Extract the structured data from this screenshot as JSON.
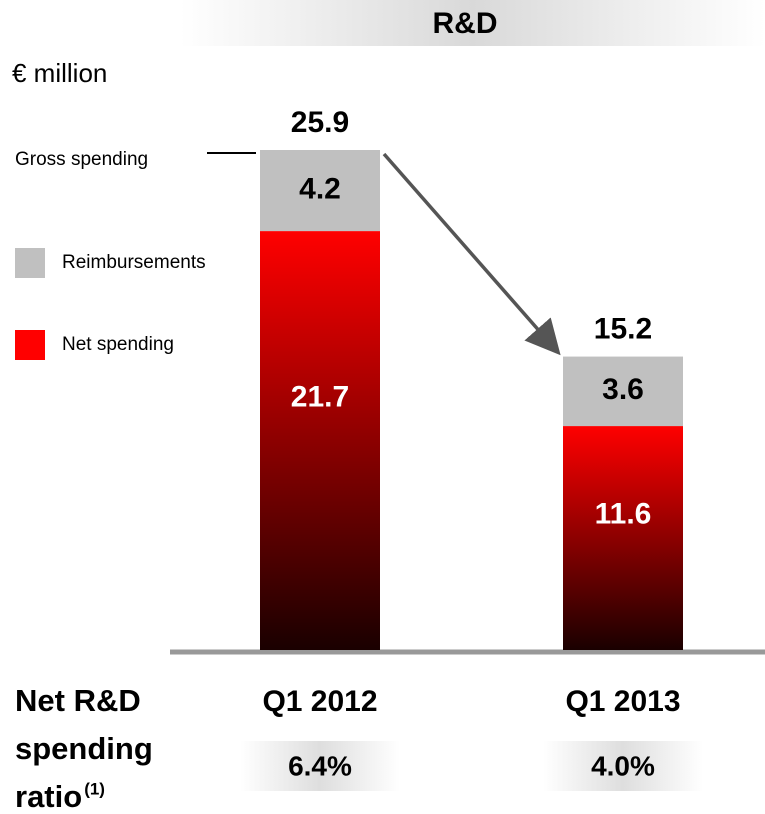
{
  "chart_data": {
    "type": "bar",
    "stacked": true,
    "title": "R&D",
    "y_label": "€ million",
    "categories": [
      "Q1 2012",
      "Q1 2013"
    ],
    "series": [
      {
        "name": "Net spending",
        "color": "#ff0000",
        "values": [
          21.7,
          11.6
        ]
      },
      {
        "name": "Reimbursements",
        "color": "#c0c0c0",
        "values": [
          4.2,
          3.6
        ]
      }
    ],
    "totals": [
      25.9,
      15.2
    ],
    "annotation": "Gross spending",
    "ratio_label": [
      "Net R&D",
      "spending",
      "ratio"
    ],
    "ratio_footnote": "(1)",
    "ratio_values": [
      6.4,
      4.0
    ],
    "ratio_value_labels": [
      "6.4%",
      "4.0%"
    ]
  }
}
